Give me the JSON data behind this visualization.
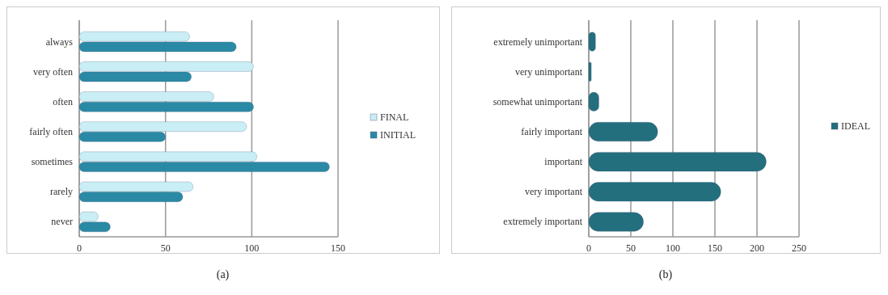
{
  "chart_data": [
    {
      "type": "bar",
      "orientation": "horizontal",
      "categories": [
        "always",
        "very often",
        "often",
        "fairly often",
        "sometimes",
        "rarely",
        "never"
      ],
      "series": [
        {
          "name": "FINAL",
          "color": "#c9eef5",
          "values": [
            64,
            101,
            78,
            97,
            103,
            66,
            11
          ]
        },
        {
          "name": "INITIAL",
          "color": "#2a8aa5",
          "values": [
            91,
            65,
            101,
            50,
            145,
            60,
            18
          ]
        }
      ],
      "xlim": [
        0,
        150
      ],
      "xticks": [
        0,
        50,
        100,
        150
      ],
      "grid": "x",
      "legend": "right",
      "annotations": [
        "(a)"
      ]
    },
    {
      "type": "bar",
      "orientation": "horizontal",
      "categories": [
        "extremely unimportant",
        "very unimportant",
        "somewhat unimportant",
        "fairly important",
        "important",
        "very important",
        "extremely important"
      ],
      "series": [
        {
          "name": "IDEAL",
          "color": "#236f7e",
          "values": [
            8,
            3,
            12,
            82,
            211,
            157,
            65
          ]
        }
      ],
      "xlim": [
        0,
        250
      ],
      "xticks": [
        0,
        50,
        100,
        150,
        200,
        250
      ],
      "grid": "x",
      "legend": "right",
      "annotations": [
        "(b)"
      ]
    }
  ]
}
